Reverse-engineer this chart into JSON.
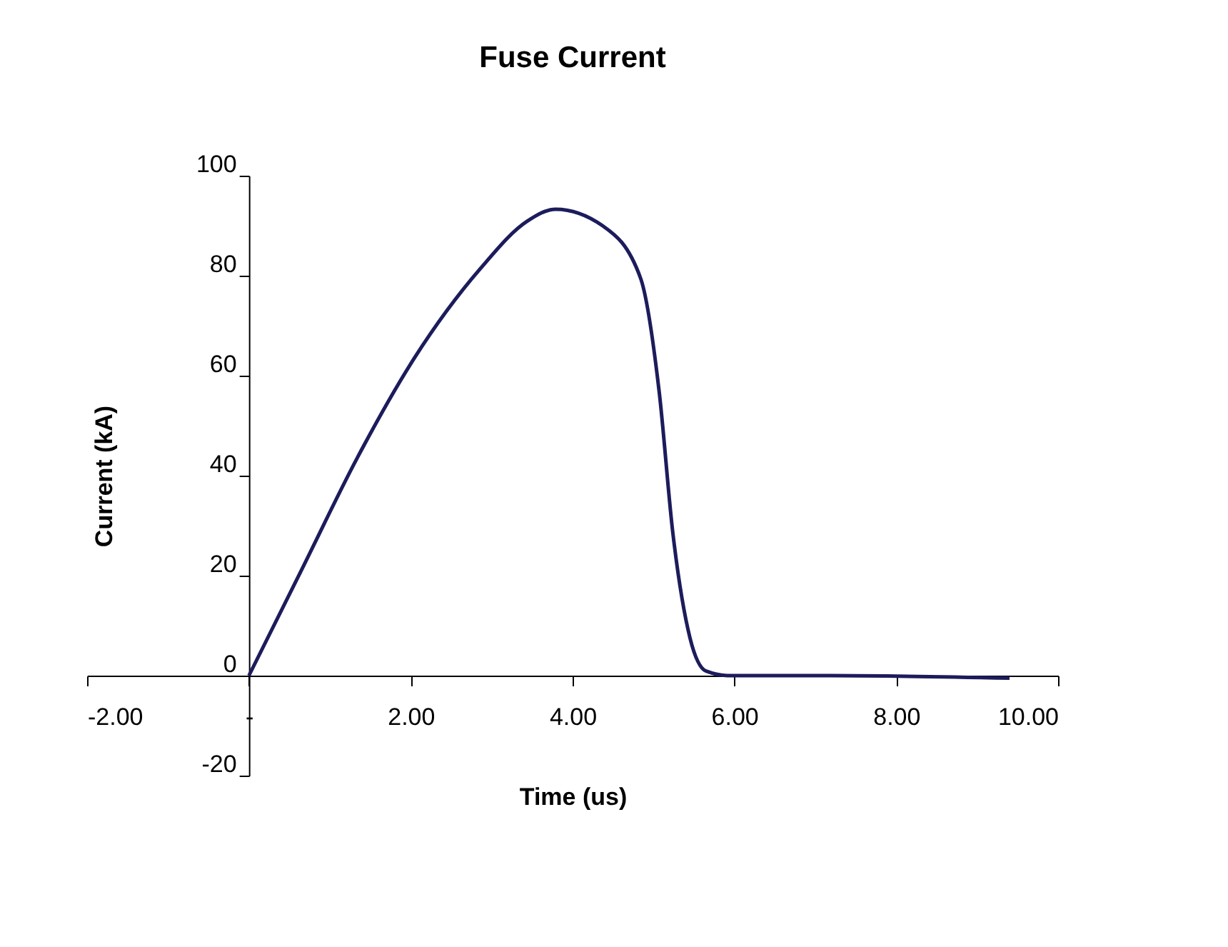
{
  "chart_data": {
    "type": "line",
    "title": "Fuse Current",
    "xlabel": "Time (us)",
    "ylabel": "Current (kA)",
    "x": [
      0,
      0.64,
      1.34,
      2.04,
      2.86,
      3.44,
      3.79,
      4.37,
      4.84,
      5.07,
      5.24,
      5.45,
      5.65,
      5.94,
      7.2,
      9.4
    ],
    "series": [
      {
        "color": "#1c1c5c",
        "values": [
          0,
          20.8,
          43.6,
          63.4,
          81.4,
          90.9,
          93.3,
          90,
          79.5,
          56.8,
          28.4,
          7.6,
          0.9,
          0,
          0,
          -0.5
        ]
      }
    ],
    "xlim": [
      -2,
      10
    ],
    "xticks": [
      {
        "value": -2,
        "label": "-2.00"
      },
      {
        "value": 0,
        "label": "-"
      },
      {
        "value": 2,
        "label": "2.00"
      },
      {
        "value": 4,
        "label": "4.00"
      },
      {
        "value": 6,
        "label": "6.00"
      },
      {
        "value": 8,
        "label": "8.00"
      },
      {
        "value": 10,
        "label": "10.00"
      }
    ],
    "ylim": [
      -20,
      100
    ],
    "yticks": [
      -20,
      0,
      20,
      40,
      60,
      80,
      100
    ],
    "grid": false,
    "legend": false,
    "marker": "none",
    "line_style": "solid"
  }
}
